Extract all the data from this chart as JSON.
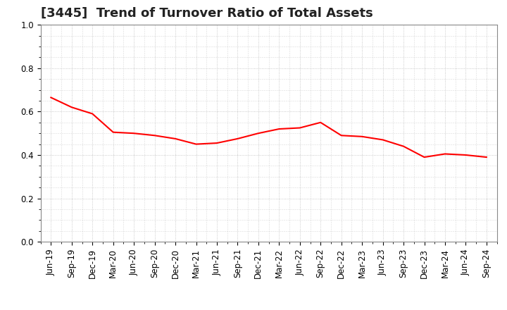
{
  "title": "[3445]  Trend of Turnover Ratio of Total Assets",
  "x_labels": [
    "Jun-19",
    "Sep-19",
    "Dec-19",
    "Mar-20",
    "Jun-20",
    "Sep-20",
    "Dec-20",
    "Mar-21",
    "Jun-21",
    "Sep-21",
    "Dec-21",
    "Mar-22",
    "Jun-22",
    "Sep-22",
    "Dec-22",
    "Mar-23",
    "Jun-23",
    "Sep-23",
    "Dec-23",
    "Mar-24",
    "Jun-24",
    "Sep-24"
  ],
  "values": [
    0.665,
    0.62,
    0.59,
    0.505,
    0.5,
    0.49,
    0.475,
    0.45,
    0.455,
    0.475,
    0.5,
    0.52,
    0.525,
    0.55,
    0.49,
    0.485,
    0.47,
    0.44,
    0.39,
    0.405,
    0.4,
    0.39
  ],
  "line_color": "#FF0000",
  "line_width": 1.5,
  "ylim": [
    0.0,
    1.0
  ],
  "yticks": [
    0.0,
    0.2,
    0.4,
    0.6,
    0.8,
    1.0
  ],
  "background_color": "#FFFFFF",
  "grid_color": "#BBBBBB",
  "title_fontsize": 13,
  "tick_fontsize": 8.5,
  "title_color": "#222222"
}
